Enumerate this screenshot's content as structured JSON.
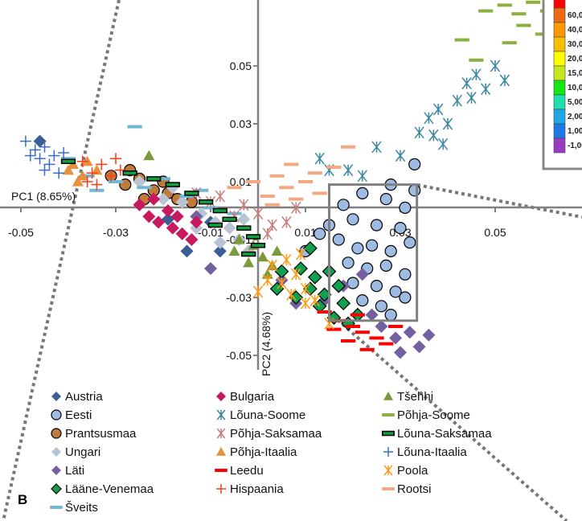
{
  "chart_data": {
    "type": "scatter",
    "panel_label": "B",
    "xlabel": "PC1 (8.65%)",
    "ylabel": "PC2 (4.68%)",
    "xlim": [
      -0.05,
      0.07
    ],
    "ylim": [
      -0.055,
      0.073
    ],
    "xticks": [
      -0.05,
      -0.03,
      -0.01,
      0.01,
      0.03,
      0.05
    ],
    "yticks": [
      0.05,
      0.03,
      0.01,
      -0.01,
      -0.03,
      -0.05
    ],
    "xtick_labels": [
      "-0.05",
      "-0.03",
      "-0.01",
      "0.01",
      "0.03",
      "0.05"
    ],
    "ytick_labels": [
      "0.05",
      "0.03",
      "0.01",
      "-0.01",
      "-0.03",
      "-0.05"
    ],
    "grid": false,
    "legend_position": "bottom",
    "zoom_box": {
      "x": [
        0.015,
        0.0335
      ],
      "y": [
        -0.038,
        0.009
      ]
    },
    "color_scale": {
      "labels": [
        "60,0",
        "40,0",
        "30,0",
        "20,0",
        "15,0",
        "10,0",
        "5,00",
        "2,00",
        "1,00",
        "-1,00"
      ],
      "colors": [
        "#ff0000",
        "#ee6a10",
        "#ff9900",
        "#f5c000",
        "#ffff00",
        "#c8e61e",
        "#14e614",
        "#20e0b0",
        "#1ea8e6",
        "#1e78e6",
        "#9a3cc0"
      ]
    },
    "series": [
      {
        "name": "Austria",
        "marker": "diamond",
        "color": "#3c5e96",
        "stroke": "none",
        "points": [
          [
            -0.015,
            -0.014
          ],
          [
            -0.008,
            -0.014
          ],
          [
            -0.01,
            -0.004
          ],
          [
            -0.019,
            -0.003
          ],
          [
            -0.046,
            0.024
          ]
        ]
      },
      {
        "name": "Eesti",
        "marker": "circle",
        "color": "#9dbbe3",
        "stroke": "#000",
        "points": [
          [
            0.018,
            0.002
          ],
          [
            0.022,
            0.006
          ],
          [
            0.027,
            0.004
          ],
          [
            0.031,
            0.001
          ],
          [
            0.033,
            0.007
          ],
          [
            0.028,
            0.009
          ],
          [
            0.02,
            -0.003
          ],
          [
            0.025,
            -0.005
          ],
          [
            0.03,
            -0.006
          ],
          [
            0.017,
            -0.01
          ],
          [
            0.021,
            -0.013
          ],
          [
            0.024,
            -0.012
          ],
          [
            0.028,
            -0.014
          ],
          [
            0.032,
            -0.011
          ],
          [
            0.019,
            -0.018
          ],
          [
            0.023,
            -0.02
          ],
          [
            0.027,
            -0.019
          ],
          [
            0.031,
            -0.022
          ],
          [
            0.02,
            -0.025
          ],
          [
            0.025,
            -0.026
          ],
          [
            0.029,
            -0.028
          ],
          [
            0.022,
            -0.031
          ],
          [
            0.026,
            -0.033
          ],
          [
            0.031,
            -0.03
          ],
          [
            0.028,
            -0.036
          ],
          [
            0.013,
            -0.008
          ],
          [
            0.01,
            -0.014
          ],
          [
            0.033,
            0.016
          ],
          [
            0.015,
            -0.005
          ]
        ]
      },
      {
        "name": "Prantsusmaa",
        "marker": "circle",
        "color": "#c07a3a",
        "stroke": "#000",
        "points": [
          [
            -0.031,
            0.012
          ],
          [
            -0.028,
            0.009
          ],
          [
            -0.025,
            0.011
          ],
          [
            -0.022,
            0.007
          ],
          [
            -0.019,
            0.006
          ],
          [
            -0.017,
            0.004
          ],
          [
            -0.024,
            0.004
          ],
          [
            -0.02,
            0.01
          ],
          [
            -0.014,
            0.003
          ],
          [
            -0.027,
            0.014
          ]
        ]
      },
      {
        "name": "Ungari",
        "marker": "diamond",
        "color": "#b8c4d4",
        "stroke": "none",
        "points": [
          [
            -0.025,
            0.01
          ],
          [
            -0.02,
            0.004
          ],
          [
            -0.016,
            0.003
          ],
          [
            -0.012,
            -0.001
          ],
          [
            -0.009,
            -0.004
          ],
          [
            -0.006,
            -0.006
          ],
          [
            -0.004,
            -0.01
          ],
          [
            -0.002,
            -0.014
          ],
          [
            -0.013,
            -0.006
          ],
          [
            -0.008,
            -0.011
          ],
          [
            -0.003,
            -0.003
          ],
          [
            -0.018,
            0.008
          ]
        ]
      },
      {
        "name": "Läti",
        "marker": "diamond",
        "color": "#7460a0",
        "stroke": "none",
        "points": [
          [
            0.026,
            -0.04
          ],
          [
            0.029,
            -0.044
          ],
          [
            0.032,
            -0.042
          ],
          [
            0.034,
            -0.047
          ],
          [
            0.03,
            -0.049
          ],
          [
            0.024,
            -0.036
          ],
          [
            0.014,
            -0.031
          ],
          [
            0.008,
            -0.032
          ],
          [
            0.018,
            -0.026
          ],
          [
            0.022,
            -0.022
          ],
          [
            0.005,
            -0.024
          ],
          [
            -0.013,
            -0.002
          ],
          [
            -0.01,
            -0.02
          ],
          [
            0.036,
            -0.043
          ]
        ]
      },
      {
        "name": "Lääne-Venemaa",
        "marker": "diamond",
        "color": "#0fa050",
        "stroke": "#000",
        "points": [
          [
            0.005,
            -0.021
          ],
          [
            0.009,
            -0.02
          ],
          [
            0.012,
            -0.023
          ],
          [
            0.015,
            -0.021
          ],
          [
            0.011,
            -0.027
          ],
          [
            0.014,
            -0.029
          ],
          [
            0.017,
            -0.026
          ],
          [
            0.008,
            -0.03
          ],
          [
            0.013,
            -0.033
          ],
          [
            0.018,
            -0.032
          ],
          [
            0.016,
            -0.037
          ],
          [
            0.019,
            -0.039
          ],
          [
            0.004,
            -0.027
          ],
          [
            0.011,
            -0.013
          ],
          [
            0.021,
            -0.036
          ]
        ]
      },
      {
        "name": "Šveits",
        "marker": "dash",
        "color": "#70b8d8",
        "stroke": "none",
        "points": [
          [
            -0.026,
            0.029
          ],
          [
            -0.036,
            0.012
          ],
          [
            -0.03,
            0.01
          ],
          [
            -0.024,
            0.008
          ],
          [
            -0.02,
            0.011
          ],
          [
            -0.015,
            0.005
          ],
          [
            -0.01,
            0.001
          ],
          [
            -0.005,
            -0.001
          ],
          [
            -0.034,
            0.007
          ],
          [
            -0.04,
            0.018
          ],
          [
            -0.012,
            0.007
          ]
        ]
      },
      {
        "name": "Bulgaria",
        "marker": "diamond",
        "color": "#c8185e",
        "stroke": "none",
        "points": [
          [
            -0.025,
            0.002
          ],
          [
            -0.023,
            -0.002
          ],
          [
            -0.021,
            -0.004
          ],
          [
            -0.019,
            0.0
          ],
          [
            -0.018,
            -0.006
          ],
          [
            -0.016,
            -0.008
          ],
          [
            -0.014,
            -0.01
          ],
          [
            -0.022,
            0.004
          ],
          [
            -0.017,
            -0.002
          ],
          [
            -0.013,
            -0.004
          ]
        ]
      },
      {
        "name": "Lõuna-Soome",
        "marker": "asterisk",
        "color": "#3a88a0",
        "stroke": "none",
        "points": [
          [
            0.013,
            0.018
          ],
          [
            0.015,
            0.014
          ],
          [
            0.019,
            0.014
          ],
          [
            0.022,
            0.012
          ],
          [
            0.025,
            0.022
          ],
          [
            0.03,
            0.019
          ],
          [
            0.034,
            0.027
          ],
          [
            0.036,
            0.032
          ],
          [
            0.038,
            0.035
          ],
          [
            0.04,
            0.03
          ],
          [
            0.042,
            0.038
          ],
          [
            0.044,
            0.044
          ],
          [
            0.046,
            0.047
          ],
          [
            0.048,
            0.042
          ],
          [
            0.039,
            0.023
          ],
          [
            0.05,
            0.05
          ],
          [
            0.045,
            0.039
          ],
          [
            0.037,
            0.026
          ],
          [
            0.052,
            0.045
          ]
        ]
      },
      {
        "name": "Põhja-Saksamaa",
        "marker": "asterisk",
        "color": "#c87c7c",
        "stroke": "none",
        "points": [
          [
            -0.013,
            0.006
          ],
          [
            -0.008,
            0.005
          ],
          [
            -0.003,
            0.002
          ],
          [
            0.0,
            -0.001
          ],
          [
            0.003,
            -0.005
          ],
          [
            0.006,
            -0.004
          ],
          [
            0.002,
            -0.008
          ],
          [
            -0.005,
            -0.002
          ],
          [
            0.008,
            0.001
          ],
          [
            -0.01,
            0.003
          ]
        ]
      },
      {
        "name": "Põhja-Itaalia",
        "marker": "triangle",
        "color": "#e8903c",
        "stroke": "none",
        "points": [
          [
            -0.039,
            0.016
          ],
          [
            -0.037,
            0.012
          ],
          [
            -0.036,
            0.017
          ],
          [
            -0.038,
            0.01
          ],
          [
            -0.034,
            0.014
          ],
          [
            -0.04,
            0.014
          ]
        ]
      },
      {
        "name": "Leedu",
        "marker": "dash",
        "color": "#ff0000",
        "stroke": "none",
        "points": [
          [
            0.014,
            -0.035
          ],
          [
            0.017,
            -0.038
          ],
          [
            0.02,
            -0.04
          ],
          [
            0.022,
            -0.042
          ],
          [
            0.025,
            -0.044
          ],
          [
            0.019,
            -0.045
          ],
          [
            0.023,
            -0.048
          ],
          [
            0.027,
            -0.046
          ],
          [
            0.016,
            -0.041
          ],
          [
            0.021,
            -0.036
          ],
          [
            0.029,
            -0.04
          ]
        ]
      },
      {
        "name": "Hispaania",
        "marker": "plus",
        "color": "#ff3a18",
        "stroke": "none",
        "points": [
          [
            -0.037,
            0.017
          ],
          [
            -0.035,
            0.013
          ],
          [
            -0.033,
            0.016
          ],
          [
            -0.031,
            0.012
          ],
          [
            -0.034,
            0.009
          ],
          [
            -0.03,
            0.018
          ],
          [
            -0.036,
            0.01
          ],
          [
            -0.029,
            0.014
          ]
        ]
      },
      {
        "name": "Tšehhi",
        "marker": "triangle",
        "color": "#7a9a3c",
        "stroke": "none",
        "points": [
          [
            -0.023,
            0.019
          ],
          [
            -0.004,
            -0.01
          ],
          [
            -0.001,
            -0.012
          ],
          [
            0.001,
            -0.016
          ],
          [
            0.003,
            -0.019
          ],
          [
            -0.002,
            -0.018
          ],
          [
            0.004,
            -0.014
          ],
          [
            0.002,
            -0.022
          ],
          [
            -0.005,
            -0.014
          ]
        ]
      },
      {
        "name": "Põhja-Soome",
        "marker": "dash",
        "color": "#8cb040",
        "stroke": "none",
        "points": [
          [
            0.048,
            0.069
          ],
          [
            0.052,
            0.071
          ],
          [
            0.055,
            0.068
          ],
          [
            0.058,
            0.072
          ],
          [
            0.061,
            0.069
          ],
          [
            0.064,
            0.066
          ],
          [
            0.056,
            0.064
          ],
          [
            0.06,
            0.061
          ],
          [
            0.066,
            0.071
          ],
          [
            0.053,
            0.058
          ],
          [
            0.063,
            0.064
          ],
          [
            0.043,
            0.059
          ],
          [
            0.046,
            0.052
          ],
          [
            0.067,
            0.062
          ]
        ]
      },
      {
        "name": "Lõuna-Saksamaa",
        "marker": "dash-outlined",
        "color": "#10a040",
        "stroke": "#000",
        "points": [
          [
            -0.04,
            0.017
          ],
          [
            -0.027,
            0.013
          ],
          [
            -0.022,
            0.011
          ],
          [
            -0.018,
            0.009
          ],
          [
            -0.014,
            0.006
          ],
          [
            -0.011,
            0.003
          ],
          [
            -0.008,
            0.0
          ],
          [
            -0.006,
            -0.003
          ],
          [
            -0.003,
            -0.006
          ],
          [
            -0.001,
            -0.009
          ],
          [
            0.0,
            -0.012
          ],
          [
            -0.002,
            -0.015
          ],
          [
            -0.009,
            -0.005
          ]
        ]
      },
      {
        "name": "Lõuna-Itaalia",
        "marker": "plus",
        "color": "#3c6ec8",
        "stroke": "none",
        "points": [
          [
            -0.049,
            0.024
          ],
          [
            -0.047,
            0.021
          ],
          [
            -0.045,
            0.022
          ],
          [
            -0.043,
            0.019
          ],
          [
            -0.046,
            0.018
          ],
          [
            -0.044,
            0.016
          ],
          [
            -0.048,
            0.019
          ],
          [
            -0.042,
            0.013
          ],
          [
            -0.045,
            0.014
          ],
          [
            -0.041,
            0.02
          ]
        ]
      },
      {
        "name": "Poola",
        "marker": "asterisk",
        "color": "#ff9a10",
        "stroke": "none",
        "points": [
          [
            0.003,
            -0.019
          ],
          [
            0.006,
            -0.017
          ],
          [
            0.008,
            -0.022
          ],
          [
            0.005,
            -0.025
          ],
          [
            0.007,
            -0.029
          ],
          [
            0.01,
            -0.027
          ],
          [
            0.012,
            -0.031
          ],
          [
            0.01,
            -0.032
          ],
          [
            0.002,
            -0.024
          ],
          [
            0.015,
            -0.039
          ],
          [
            0.009,
            -0.015
          ],
          [
            0.0,
            -0.028
          ]
        ]
      },
      {
        "name": "Rootsi",
        "marker": "dash",
        "color": "#f4a880",
        "stroke": "none",
        "points": [
          [
            -0.005,
            0.008
          ],
          [
            -0.001,
            0.01
          ],
          [
            0.002,
            0.005
          ],
          [
            0.004,
            0.012
          ],
          [
            0.006,
            0.008
          ],
          [
            0.008,
            0.004
          ],
          [
            0.01,
            0.01
          ],
          [
            0.013,
            0.006
          ],
          [
            0.016,
            0.015
          ],
          [
            0.019,
            0.022
          ],
          [
            0.012,
            0.013
          ],
          [
            0.003,
            0.002
          ],
          [
            0.007,
            0.016
          ]
        ]
      }
    ]
  }
}
